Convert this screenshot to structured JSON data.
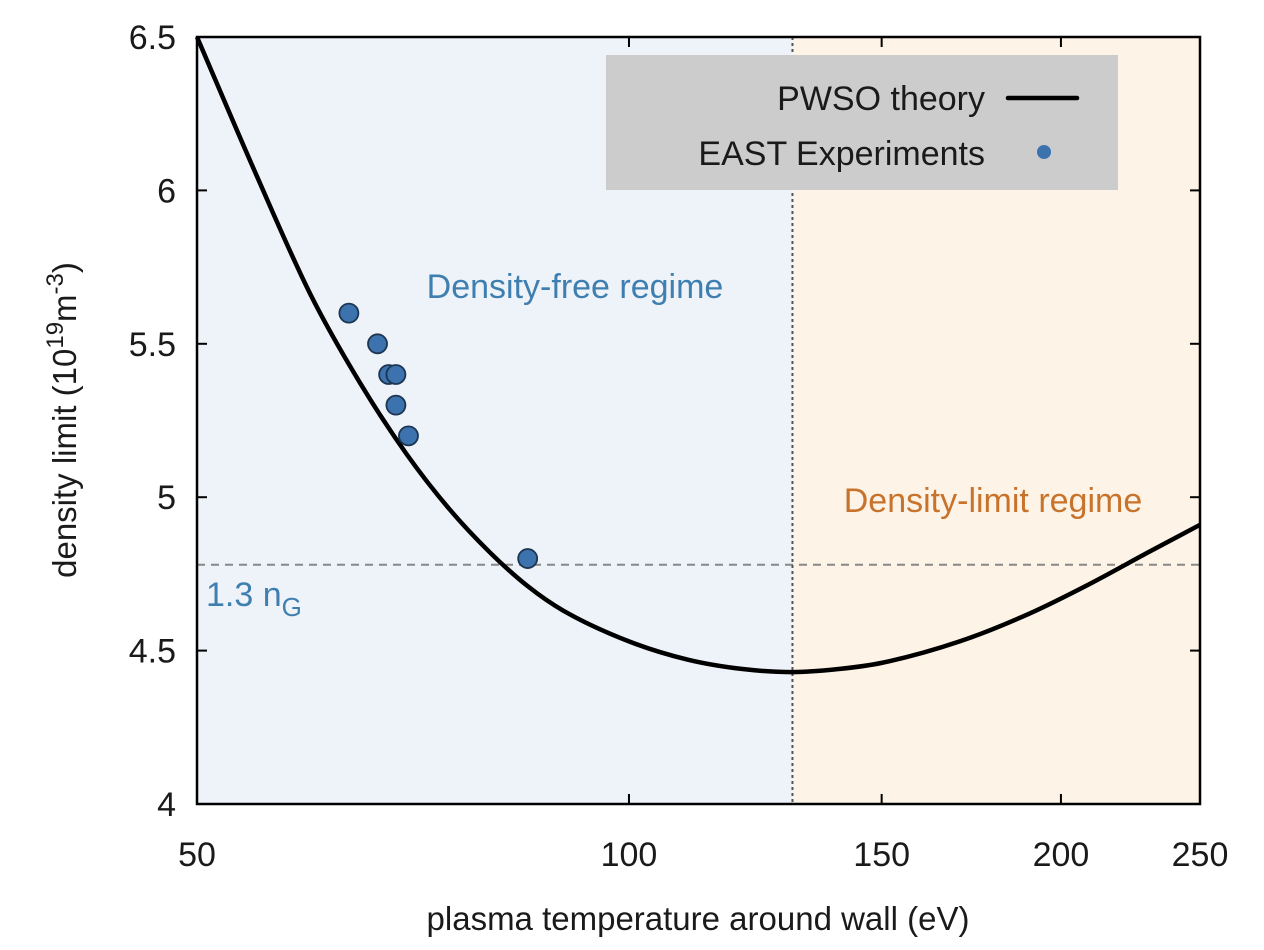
{
  "chart_data": {
    "type": "line",
    "x_scale": "log",
    "xlim": [
      50,
      250
    ],
    "ylim": [
      4,
      6.5
    ],
    "xticks": [
      50,
      100,
      150,
      200,
      250
    ],
    "yticks": [
      4,
      4.5,
      5,
      5.5,
      6,
      6.5
    ],
    "xlabel": "plasma temperature around wall (eV)",
    "ylabel_parts": {
      "main": "density limit (10",
      "exp1": "19",
      "mid": "m",
      "exp2": "-3",
      "end": ")"
    },
    "legend": {
      "placement": "top-right",
      "entries": [
        "PWSO theory",
        "EAST Experiments"
      ]
    },
    "series": [
      {
        "name": "PWSO theory",
        "kind": "line",
        "color": "#000000",
        "x": [
          50,
          55,
          60,
          65,
          70,
          75,
          80,
          85,
          90,
          100,
          110,
          120,
          130,
          140,
          150,
          170,
          190,
          210,
          230,
          250
        ],
        "y": [
          6.5,
          6.05,
          5.66,
          5.37,
          5.14,
          4.96,
          4.82,
          4.71,
          4.63,
          4.53,
          4.47,
          4.44,
          4.43,
          4.44,
          4.46,
          4.53,
          4.62,
          4.72,
          4.82,
          4.91
        ]
      },
      {
        "name": "EAST Experiments",
        "kind": "scatter",
        "color": "#3c72ae",
        "x": [
          63.8,
          66.8,
          68.0,
          68.8,
          68.8,
          70.2,
          85.0
        ],
        "y": [
          5.6,
          5.5,
          5.4,
          5.4,
          5.3,
          5.2,
          4.8
        ]
      }
    ],
    "reference_lines": [
      {
        "orientation": "horizontal",
        "value": 4.78,
        "label_main": "1.3 n",
        "label_sub": "G",
        "color": "#888888",
        "label_color": "#3f7fb0"
      },
      {
        "orientation": "vertical",
        "value": 130,
        "color": "#555555"
      }
    ],
    "regions": [
      {
        "label": "Density-free regime",
        "x_range": [
          50,
          130
        ],
        "fill": "#eef3fa",
        "label_color": "#3f7fb0"
      },
      {
        "label": "Density-limit regime",
        "x_range": [
          130,
          250
        ],
        "fill": "#fdf3e6",
        "label_color": "#c8732c"
      }
    ],
    "grid": false
  }
}
